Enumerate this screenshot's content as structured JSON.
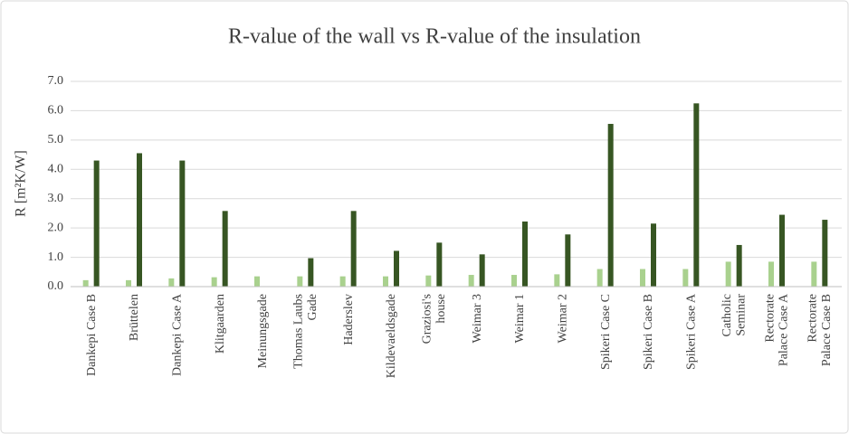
{
  "chart_data": {
    "type": "bar",
    "title": "R-value of the wall vs R-value of the insulation",
    "y_label": "R [m²K/W]",
    "categories": [
      "Dankepi Case B",
      "Brüttelen",
      "Dankepi Case A",
      "Klitgaarden",
      "Meinungsgade",
      "Thomas Laubs Gade",
      "Haderslev",
      "Kildevaeldsgade",
      "Graziosi's house",
      "Weimar 3",
      "Weimar 1",
      "Weimar 2",
      "Spikeri Case C",
      "Spikeri Case B",
      "Spikeri Case A",
      "Catholic Seminar",
      "Rectorate Palace Case A",
      "Rectorate Palace Case B"
    ],
    "series": [
      {
        "color": "#a9d18e",
        "values": [
          0.22,
          0.22,
          0.28,
          0.32,
          0.35,
          0.35,
          0.35,
          0.35,
          0.38,
          0.4,
          0.4,
          0.42,
          0.6,
          0.6,
          0.6,
          0.85,
          0.85,
          0.85
        ]
      },
      {
        "color": "#375623",
        "values": [
          4.3,
          4.55,
          4.3,
          2.58,
          null,
          0.97,
          2.58,
          1.22,
          1.5,
          1.1,
          2.22,
          1.78,
          5.55,
          2.15,
          6.25,
          1.42,
          2.45,
          2.28
        ]
      }
    ],
    "ylim": [
      0,
      7
    ],
    "yticks": [
      {
        "value": 0,
        "label": "0.0"
      },
      {
        "value": 1,
        "label": "1.0"
      },
      {
        "value": 2,
        "label": "2.0"
      },
      {
        "value": 3,
        "label": "3.0"
      },
      {
        "value": 4,
        "label": "4.0"
      },
      {
        "value": 5,
        "label": "5.0"
      },
      {
        "value": 6,
        "label": "6.0"
      },
      {
        "value": 7,
        "label": "7.0"
      }
    ],
    "grid": true
  }
}
